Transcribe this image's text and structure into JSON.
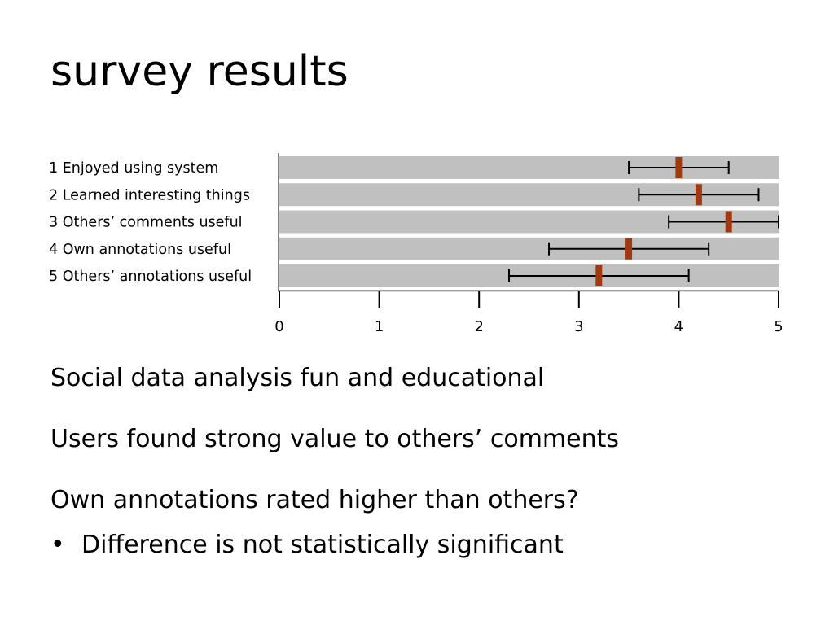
{
  "slide": {
    "title": "survey results",
    "points": [
      "Social data analysis fun and educational",
      "Users found strong value to others’ comments",
      "Own annotations rated higher than others?"
    ],
    "sub_bullet_symbol": "•",
    "sub_bullet": "Difference is not statistically significant"
  },
  "chart_data": {
    "type": "bar",
    "orientation": "horizontal",
    "categories": [
      "1 Enjoyed using system",
      "2 Learned interesting things",
      "3 Others’ comments useful",
      "4 Own annotations useful",
      "5 Others’ annotations useful"
    ],
    "values": [
      4.0,
      4.2,
      4.5,
      3.5,
      3.2
    ],
    "error_low": [
      3.5,
      3.6,
      3.9,
      2.7,
      2.3
    ],
    "error_high": [
      4.5,
      4.8,
      5.0,
      4.3,
      4.1
    ],
    "xlim": [
      0,
      5
    ],
    "xticks": [
      0,
      1,
      2,
      3,
      4,
      5
    ],
    "colors": {
      "bar": "#c0c0c0",
      "mean_marker": "#a0390f",
      "error_bar": "#000000",
      "axis": "#808080"
    }
  }
}
